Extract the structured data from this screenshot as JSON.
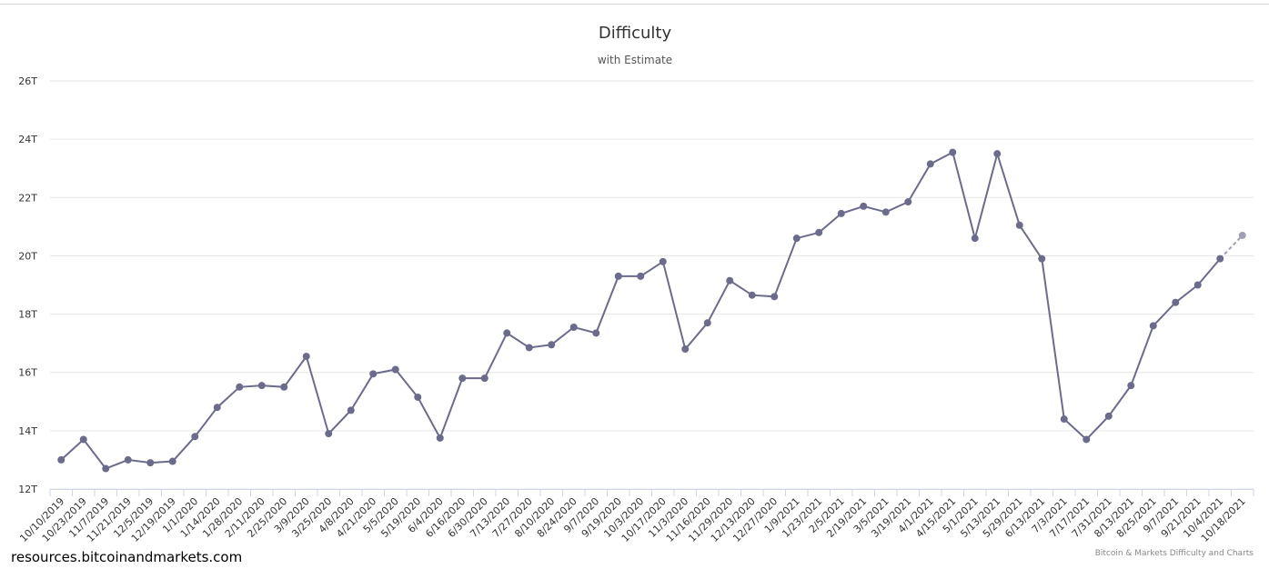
{
  "chart_data": {
    "type": "line",
    "title": "Difficulty",
    "subtitle": "with Estimate",
    "xlabel": "",
    "ylabel": "",
    "ylim": [
      12,
      26
    ],
    "yticks": [
      "12T",
      "14T",
      "16T",
      "18T",
      "20T",
      "22T",
      "24T",
      "26T"
    ],
    "grid": true,
    "categories": [
      "10/10/2019",
      "10/23/2019",
      "11/7/2019",
      "11/21/2019",
      "12/5/2019",
      "12/19/2019",
      "1/1/2020",
      "1/14/2020",
      "1/28/2020",
      "2/11/2020",
      "2/25/2020",
      "3/9/2020",
      "3/25/2020",
      "4/8/2020",
      "4/21/2020",
      "5/5/2020",
      "5/19/2020",
      "6/4/2020",
      "6/16/2020",
      "6/30/2020",
      "7/13/2020",
      "7/27/2020",
      "8/10/2020",
      "8/24/2020",
      "9/7/2020",
      "9/19/2020",
      "10/3/2020",
      "10/17/2020",
      "11/3/2020",
      "11/16/2020",
      "11/29/2020",
      "12/13/2020",
      "12/27/2020",
      "1/9/2021",
      "1/23/2021",
      "2/5/2021",
      "2/19/2021",
      "3/5/2021",
      "3/19/2021",
      "4/1/2021",
      "4/15/2021",
      "5/1/2021",
      "5/13/2021",
      "5/29/2021",
      "6/13/2021",
      "7/3/2021",
      "7/17/2021",
      "7/31/2021",
      "8/13/2021",
      "8/25/2021",
      "9/7/2021",
      "9/21/2021",
      "10/4/2021",
      "10/18/2021"
    ],
    "series": [
      {
        "values": [
          13.0,
          13.7,
          12.7,
          13.0,
          12.9,
          12.95,
          13.8,
          14.8,
          15.5,
          15.55,
          15.5,
          16.55,
          13.9,
          14.7,
          15.95,
          16.1,
          15.15,
          13.75,
          15.8,
          15.8,
          17.35,
          16.85,
          16.95,
          17.55,
          17.35,
          19.3,
          19.3,
          19.8,
          16.8,
          17.7,
          19.15,
          18.65,
          18.6,
          20.6,
          20.8,
          21.45,
          21.7,
          21.5,
          21.85,
          23.15,
          23.55,
          20.6,
          23.5,
          21.05,
          19.9,
          14.4,
          13.7,
          14.5,
          15.55,
          17.6,
          18.4,
          19.0,
          19.9,
          20.7
        ],
        "estimate_from_index": 52,
        "color": "#6b6b8c",
        "estimate_color": "#a0a0b4"
      }
    ]
  },
  "footer": {
    "source": "resources.bitcoinandmarkets.com",
    "credits": "Bitcoin & Markets Difficulty and Charts"
  }
}
